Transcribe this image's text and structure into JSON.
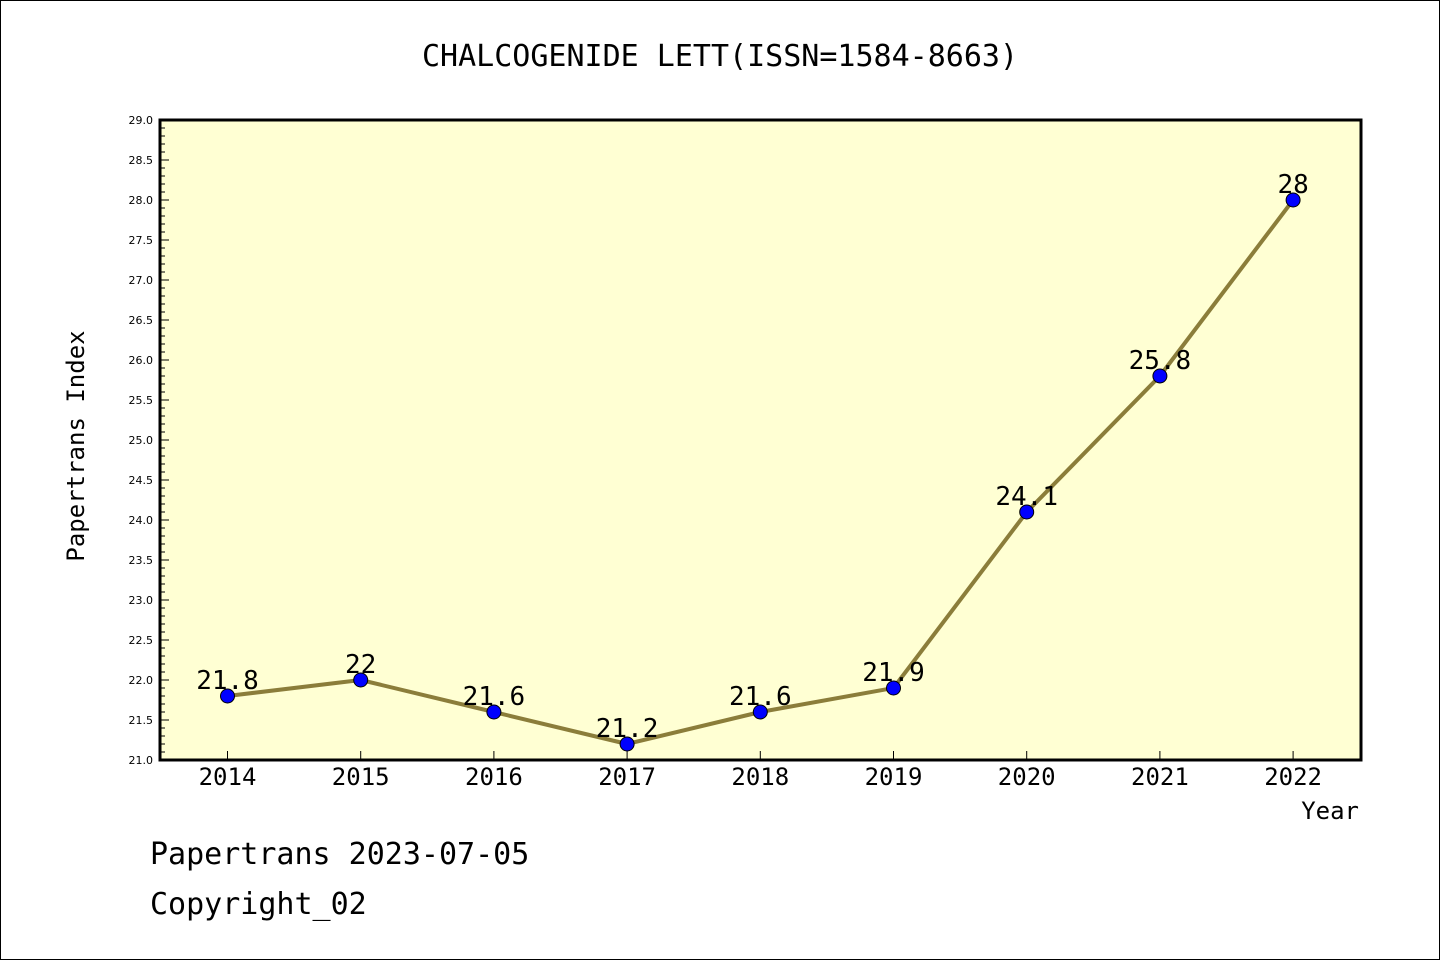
{
  "chart_data": {
    "type": "line",
    "title": "CHALCOGENIDE LETT(ISSN=1584-8663)",
    "xlabel": "Year",
    "ylabel": "Papertrans Index",
    "categories": [
      "2014",
      "2015",
      "2016",
      "2017",
      "2018",
      "2019",
      "2020",
      "2021",
      "2022"
    ],
    "series": [
      {
        "values": [
          21.8,
          22,
          21.6,
          21.2,
          21.6,
          21.9,
          24.1,
          25.8,
          28
        ],
        "data_labels": [
          "21.8",
          "22",
          "21.6",
          "21.2",
          "21.6",
          "21.9",
          "24.1",
          "25.8",
          "28"
        ]
      }
    ],
    "ylim": [
      21.0,
      29.0
    ],
    "yticks": [
      "21.0",
      "21.5",
      "22.0",
      "22.5",
      "23.0",
      "23.5",
      "24.0",
      "24.5",
      "25.0",
      "25.5",
      "26.0",
      "26.5",
      "27.0",
      "27.5",
      "28.0",
      "28.5",
      "29.0"
    ],
    "grid": false,
    "plot_background": "#ffffd3",
    "line_color": "#8b7d3a",
    "marker_color": "#0000ff"
  },
  "footer": {
    "line1": "Papertrans 2023-07-05",
    "line2": "Copyright_02"
  }
}
